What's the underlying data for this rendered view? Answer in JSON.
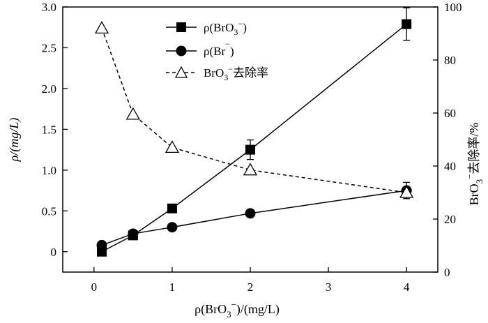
{
  "chart_data": {
    "type": "line",
    "x_axis": {
      "label_main": "ρ(BrO",
      "label_sub": "3",
      "label_sup": "−",
      "label_tail": ")/(mg/L)",
      "range": [
        -0.4,
        4.4
      ],
      "ticks": [
        0,
        1,
        2,
        3,
        4
      ]
    },
    "y_axis_left": {
      "label_main": "ρ/(mg/L)",
      "range": [
        -0.25,
        3.0
      ],
      "ticks": [
        0,
        0.5,
        1.0,
        1.5,
        2.0,
        2.5,
        3.0
      ],
      "tick_labels": [
        "0",
        "0.5",
        "1.0",
        "1.5",
        "2.0",
        "2.5",
        "3.0"
      ]
    },
    "y_axis_right": {
      "label_main": "BrO",
      "label_sub": "3",
      "label_sup": "−",
      "label_tail": "去除率/%",
      "range": [
        0,
        100
      ],
      "ticks": [
        0,
        20,
        40,
        60,
        80,
        100
      ]
    },
    "series": [
      {
        "name_main": "ρ(BrO",
        "name_sub": "3",
        "name_sup": "−",
        "name_tail": ")",
        "marker": "square",
        "line": "solid",
        "axis": "left",
        "x": [
          0.1,
          0.5,
          1,
          2,
          4
        ],
        "y": [
          0,
          0.2,
          0.53,
          1.25,
          2.79
        ],
        "err": [
          0,
          0,
          0,
          0.12,
          0.2
        ]
      },
      {
        "name_main": "ρ(Br",
        "name_sub": "",
        "name_sup": "−",
        "name_tail": ")",
        "marker": "circle",
        "line": "solid",
        "axis": "left",
        "x": [
          0.1,
          0.5,
          1,
          2,
          4
        ],
        "y": [
          0.08,
          0.22,
          0.3,
          0.47,
          0.75
        ],
        "err": [
          0,
          0,
          0,
          0,
          0.1
        ]
      },
      {
        "name_main": "BrO",
        "name_sub": "3",
        "name_sup": "−",
        "name_tail": "去除率",
        "marker": "triangle",
        "line": "dashed",
        "axis": "right",
        "x": [
          0.1,
          0.5,
          1,
          2,
          4
        ],
        "y": [
          92,
          59.5,
          47,
          38.5,
          30
        ],
        "err": [
          0,
          0,
          0,
          0,
          0
        ]
      }
    ],
    "legend_position": "top-center",
    "grid": false
  }
}
